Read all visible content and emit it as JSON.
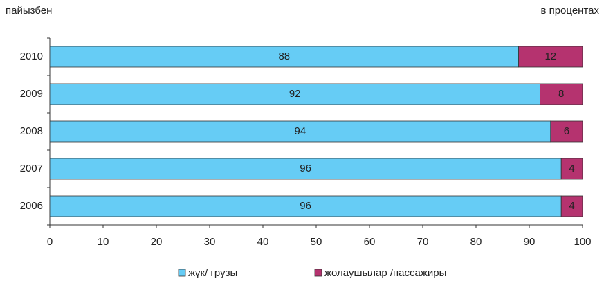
{
  "chart_data": {
    "type": "stacked_barh",
    "annotations": [
      "пайызбен",
      "в процентах"
    ],
    "categories": [
      "2010",
      "2009",
      "2008",
      "2007",
      "2006"
    ],
    "series": [
      {
        "name": "жүк/ грузы",
        "color": "#66ccf5",
        "values": [
          88,
          92,
          94,
          96,
          96
        ]
      },
      {
        "name": "жолаушылар /пассажиры",
        "color": "#b5336f",
        "values": [
          12,
          8,
          6,
          4,
          4
        ]
      }
    ],
    "xlim": [
      0,
      100
    ],
    "xticks": [
      0,
      10,
      20,
      30,
      40,
      50,
      60,
      70,
      80,
      90,
      100
    ],
    "legend": "bottom"
  }
}
